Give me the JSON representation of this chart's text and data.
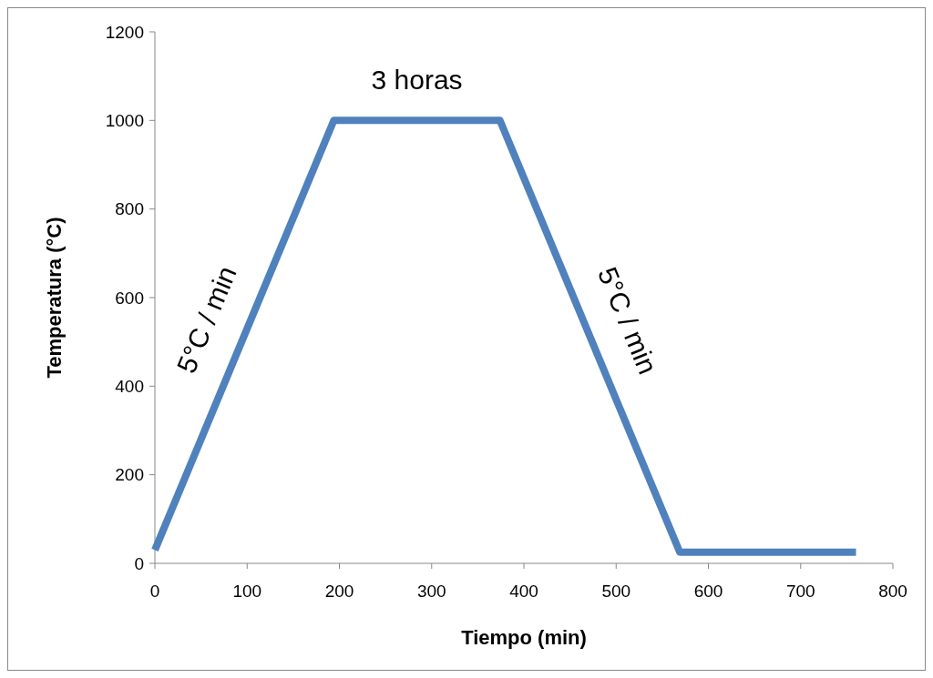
{
  "chart_data": {
    "type": "line",
    "xlabel": "Tiempo (min)",
    "ylabel": "Temperatura (°C)",
    "x": [
      0,
      194,
      374,
      569,
      760
    ],
    "series": [
      {
        "color": "#4f81bd",
        "values": [
          30,
          1000,
          1000,
          25,
          25
        ]
      }
    ],
    "xlim": [
      0,
      800
    ],
    "xticks": [
      0,
      100,
      200,
      300,
      400,
      500,
      600,
      700,
      800
    ],
    "ylim": [
      0,
      1200
    ],
    "yticks": [
      0,
      200,
      400,
      600,
      800,
      1000,
      1200
    ],
    "grid": false,
    "marker": "none",
    "line_style": "solid",
    "annotations": [
      "5°C / min",
      "3 horas",
      "5°C / min"
    ]
  }
}
